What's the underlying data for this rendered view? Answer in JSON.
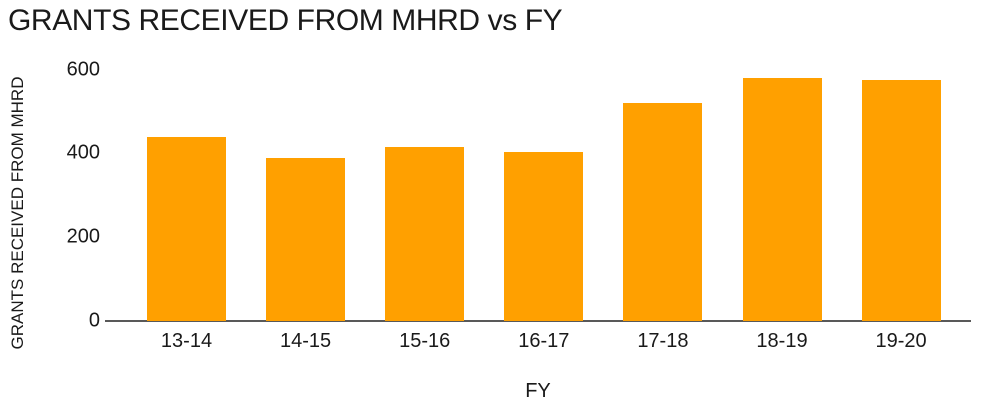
{
  "chart_data": {
    "type": "bar",
    "title": "GRANTS RECEIVED FROM MHRD vs FY",
    "xlabel": "FY",
    "ylabel": "GRANTS RECEIVED FROM MHRD",
    "categories": [
      "13-14",
      "14-15",
      "15-16",
      "16-17",
      "17-18",
      "18-19",
      "19-20"
    ],
    "values": [
      440,
      390,
      415,
      405,
      520,
      580,
      575
    ],
    "yticks": [
      0,
      200,
      400,
      600
    ],
    "ylim": [
      0,
      600
    ],
    "grid": false,
    "legend": "none",
    "bar_color": "#ffa000",
    "axis_color": "#595959",
    "text_color": "#1a1a1a"
  }
}
